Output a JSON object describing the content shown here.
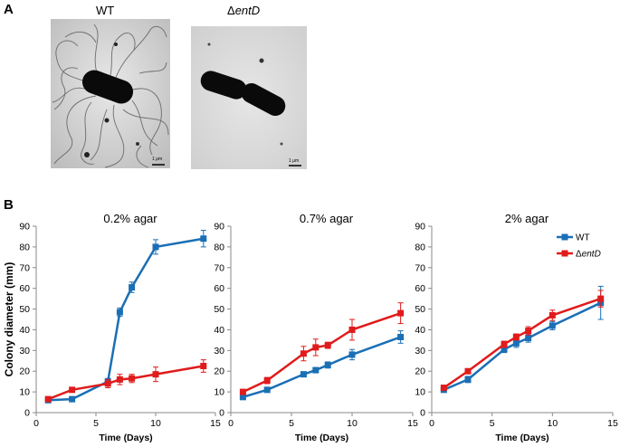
{
  "panel_a": {
    "label": "A",
    "images": [
      {
        "title": "WT",
        "scale_text": "1 μm"
      },
      {
        "title_prefix": "Δ",
        "title_gene": "entD",
        "scale_text": "1 μm"
      }
    ]
  },
  "panel_b": {
    "label": "B",
    "ylabel": "Colony diameter (mm)"
  },
  "colors": {
    "wt": "#1a6fb5",
    "entD": "#e01b1b"
  },
  "chart_data": [
    {
      "type": "line",
      "title": "0.2% agar",
      "xlabel": "Time (Days)",
      "xlim": [
        0,
        15
      ],
      "ylim": [
        0,
        90
      ],
      "xticks": [
        0,
        5,
        10,
        15
      ],
      "yticks": [
        0,
        10,
        20,
        30,
        40,
        50,
        60,
        70,
        80,
        90
      ],
      "x": [
        1,
        3,
        6,
        7,
        8,
        10,
        14
      ],
      "series": [
        {
          "name": "WT",
          "values": [
            6,
            6.5,
            15,
            48.5,
            60.5,
            80,
            84
          ],
          "err": [
            0,
            0,
            1.5,
            2,
            2.5,
            3.5,
            4
          ]
        },
        {
          "name": "ΔentD",
          "values": [
            6.5,
            11,
            14,
            16,
            16.5,
            18.5,
            22.5
          ],
          "err": [
            0,
            1,
            2,
            2.5,
            2,
            3.5,
            3
          ]
        }
      ]
    },
    {
      "type": "line",
      "title": "0.7% agar",
      "xlabel": "Time (Days)",
      "xlim": [
        0,
        15
      ],
      "ylim": [
        0,
        90
      ],
      "xticks": [
        0,
        5,
        10,
        15
      ],
      "yticks": [
        0,
        10,
        20,
        30,
        40,
        50,
        60,
        70,
        80,
        90
      ],
      "x": [
        1,
        3,
        6,
        7,
        8,
        10,
        14
      ],
      "series": [
        {
          "name": "WT",
          "values": [
            7.5,
            11,
            18.5,
            20.5,
            23,
            28,
            36.5
          ],
          "err": [
            0.5,
            0.8,
            1,
            1.2,
            1.5,
            2.5,
            3
          ]
        },
        {
          "name": "ΔentD",
          "values": [
            10,
            15.5,
            28.5,
            31.5,
            32.5,
            40,
            48
          ],
          "err": [
            0.8,
            1.5,
            3.5,
            4,
            1.5,
            5,
            5
          ]
        }
      ]
    },
    {
      "type": "line",
      "title": "2% agar",
      "xlabel": "Time (Days)",
      "xlim": [
        0,
        15
      ],
      "ylim": [
        0,
        90
      ],
      "xticks": [
        0,
        5,
        10,
        15
      ],
      "yticks": [
        0,
        10,
        20,
        30,
        40,
        50,
        60,
        70,
        80,
        90
      ],
      "x": [
        1,
        3,
        6,
        7,
        8,
        10,
        14
      ],
      "legend": "top-right",
      "series": [
        {
          "name": "WT",
          "values": [
            11,
            16,
            30.5,
            33.5,
            36,
            42,
            53
          ],
          "err": [
            0.5,
            1.5,
            1.5,
            2,
            2,
            2,
            8
          ]
        },
        {
          "name": "ΔentD",
          "values": [
            12,
            20,
            33,
            36.5,
            39.5,
            47,
            55
          ],
          "err": [
            0.5,
            1,
            1.5,
            1.5,
            2,
            2.5,
            4
          ]
        }
      ]
    }
  ]
}
